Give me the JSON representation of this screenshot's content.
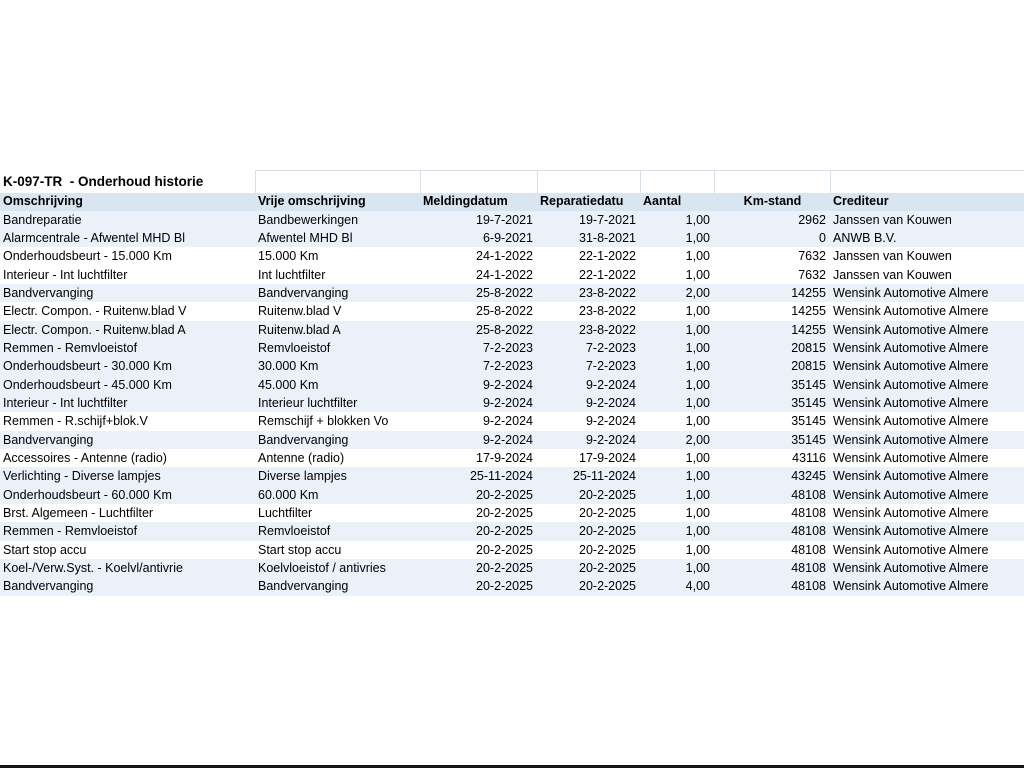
{
  "title": "K-097-TR  - Onderhoud historie",
  "colors": {
    "header_bg": "#d9e5f1",
    "row_shaded_bg": "#eaf1f8",
    "row_plain_bg": "#ffffff",
    "gridline": "#d7dfe9",
    "text": "#000000"
  },
  "table": {
    "columns": [
      {
        "key": "omschrijving",
        "label": "Omschrijving",
        "align": "left"
      },
      {
        "key": "vrije",
        "label": "Vrije omschrijving",
        "align": "left"
      },
      {
        "key": "melding",
        "label": "Meldingdatum",
        "align": "left"
      },
      {
        "key": "reparatie",
        "label": "Reparatiedatu",
        "align": "left"
      },
      {
        "key": "aantal",
        "label": "Aantal",
        "align": "left"
      },
      {
        "key": "km",
        "label": "Km-stand",
        "align": "center"
      },
      {
        "key": "crediteur",
        "label": "Crediteur",
        "align": "left"
      }
    ],
    "value_alignments": {
      "omschrijving": "left",
      "vrije": "left",
      "melding": "right",
      "reparatie": "right",
      "aantal": "right",
      "km": "right",
      "crediteur": "left"
    },
    "rows": [
      {
        "omschrijving": "Bandreparatie",
        "vrije": "Bandbewerkingen",
        "melding": "19-7-2021",
        "reparatie": "19-7-2021",
        "aantal": "1,00",
        "km": "2962",
        "crediteur": "Janssen van Kouwen",
        "shaded": true
      },
      {
        "omschrijving": "Alarmcentrale - Afwentel MHD Bl",
        "vrije": "Afwentel MHD Bl",
        "melding": "6-9-2021",
        "reparatie": "31-8-2021",
        "aantal": "1,00",
        "km": "0",
        "crediteur": "ANWB B.V.",
        "shaded": true
      },
      {
        "omschrijving": "Onderhoudsbeurt - 15.000 Km",
        "vrije": "15.000 Km",
        "melding": "24-1-2022",
        "reparatie": "22-1-2022",
        "aantal": "1,00",
        "km": "7632",
        "crediteur": "Janssen van Kouwen",
        "shaded": false
      },
      {
        "omschrijving": "Interieur - Int luchtfilter",
        "vrije": "Int luchtfilter",
        "melding": "24-1-2022",
        "reparatie": "22-1-2022",
        "aantal": "1,00",
        "km": "7632",
        "crediteur": "Janssen van Kouwen",
        "shaded": false
      },
      {
        "omschrijving": "Bandvervanging",
        "vrije": "Bandvervanging",
        "melding": "25-8-2022",
        "reparatie": "23-8-2022",
        "aantal": "2,00",
        "km": "14255",
        "crediteur": "Wensink Automotive Almere",
        "shaded": true
      },
      {
        "omschrijving": "Electr. Compon. - Ruitenw.blad V",
        "vrije": "Ruitenw.blad V",
        "melding": "25-8-2022",
        "reparatie": "23-8-2022",
        "aantal": "1,00",
        "km": "14255",
        "crediteur": "Wensink Automotive Almere",
        "shaded": false
      },
      {
        "omschrijving": "Electr. Compon. - Ruitenw.blad A",
        "vrije": "Ruitenw.blad A",
        "melding": "25-8-2022",
        "reparatie": "23-8-2022",
        "aantal": "1,00",
        "km": "14255",
        "crediteur": "Wensink Automotive Almere",
        "shaded": true
      },
      {
        "omschrijving": "Remmen - Remvloeistof",
        "vrije": "Remvloeistof",
        "melding": "7-2-2023",
        "reparatie": "7-2-2023",
        "aantal": "1,00",
        "km": "20815",
        "crediteur": "Wensink Automotive Almere",
        "shaded": true
      },
      {
        "omschrijving": "Onderhoudsbeurt - 30.000 Km",
        "vrije": "30.000 Km",
        "melding": "7-2-2023",
        "reparatie": "7-2-2023",
        "aantal": "1,00",
        "km": "20815",
        "crediteur": "Wensink Automotive Almere",
        "shaded": true
      },
      {
        "omschrijving": "Onderhoudsbeurt - 45.000 Km",
        "vrije": "45.000 Km",
        "melding": "9-2-2024",
        "reparatie": "9-2-2024",
        "aantal": "1,00",
        "km": "35145",
        "crediteur": "Wensink Automotive Almere",
        "shaded": true
      },
      {
        "omschrijving": "Interieur - Int luchtfilter",
        "vrije": "Interieur luchtfilter",
        "melding": "9-2-2024",
        "reparatie": "9-2-2024",
        "aantal": "1,00",
        "km": "35145",
        "crediteur": "Wensink Automotive Almere",
        "shaded": true
      },
      {
        "omschrijving": "Remmen - R.schijf+blok.V",
        "vrije": "Remschijf + blokken Vo",
        "melding": "9-2-2024",
        "reparatie": "9-2-2024",
        "aantal": "1,00",
        "km": "35145",
        "crediteur": "Wensink Automotive Almere",
        "shaded": false
      },
      {
        "omschrijving": "Bandvervanging",
        "vrije": "Bandvervanging",
        "melding": "9-2-2024",
        "reparatie": "9-2-2024",
        "aantal": "2,00",
        "km": "35145",
        "crediteur": "Wensink Automotive Almere",
        "shaded": true
      },
      {
        "omschrijving": "Accessoires - Antenne (radio)",
        "vrije": "Antenne (radio)",
        "melding": "17-9-2024",
        "reparatie": "17-9-2024",
        "aantal": "1,00",
        "km": "43116",
        "crediteur": "Wensink Automotive Almere",
        "shaded": false
      },
      {
        "omschrijving": "Verlichting - Diverse lampjes",
        "vrije": "Diverse lampjes",
        "melding": "25-11-2024",
        "reparatie": "25-11-2024",
        "aantal": "1,00",
        "km": "43245",
        "crediteur": "Wensink Automotive Almere",
        "shaded": true
      },
      {
        "omschrijving": "Onderhoudsbeurt - 60.000 Km",
        "vrije": "60.000 Km",
        "melding": "20-2-2025",
        "reparatie": "20-2-2025",
        "aantal": "1,00",
        "km": "48108",
        "crediteur": "Wensink Automotive Almere",
        "shaded": true
      },
      {
        "omschrijving": "Brst. Algemeen - Luchtfilter",
        "vrije": "Luchtfilter",
        "melding": "20-2-2025",
        "reparatie": "20-2-2025",
        "aantal": "1,00",
        "km": "48108",
        "crediteur": "Wensink Automotive Almere",
        "shaded": false
      },
      {
        "omschrijving": "Remmen - Remvloeistof",
        "vrije": "Remvloeistof",
        "melding": "20-2-2025",
        "reparatie": "20-2-2025",
        "aantal": "1,00",
        "km": "48108",
        "crediteur": "Wensink Automotive Almere",
        "shaded": true
      },
      {
        "omschrijving": "Start stop accu",
        "vrije": "Start stop accu",
        "melding": "20-2-2025",
        "reparatie": "20-2-2025",
        "aantal": "1,00",
        "km": "48108",
        "crediteur": "Wensink Automotive Almere",
        "shaded": false
      },
      {
        "omschrijving": "Koel-/Verw.Syst. - Koelvl/antivrie",
        "vrije": "Koelvloeistof / antivries",
        "melding": "20-2-2025",
        "reparatie": "20-2-2025",
        "aantal": "1,00",
        "km": "48108",
        "crediteur": "Wensink Automotive Almere",
        "shaded": true
      },
      {
        "omschrijving": "Bandvervanging",
        "vrije": "Bandvervanging",
        "melding": "20-2-2025",
        "reparatie": "20-2-2025",
        "aantal": "4,00",
        "km": "48108",
        "crediteur": "Wensink Automotive Almere",
        "shaded": true
      }
    ]
  }
}
